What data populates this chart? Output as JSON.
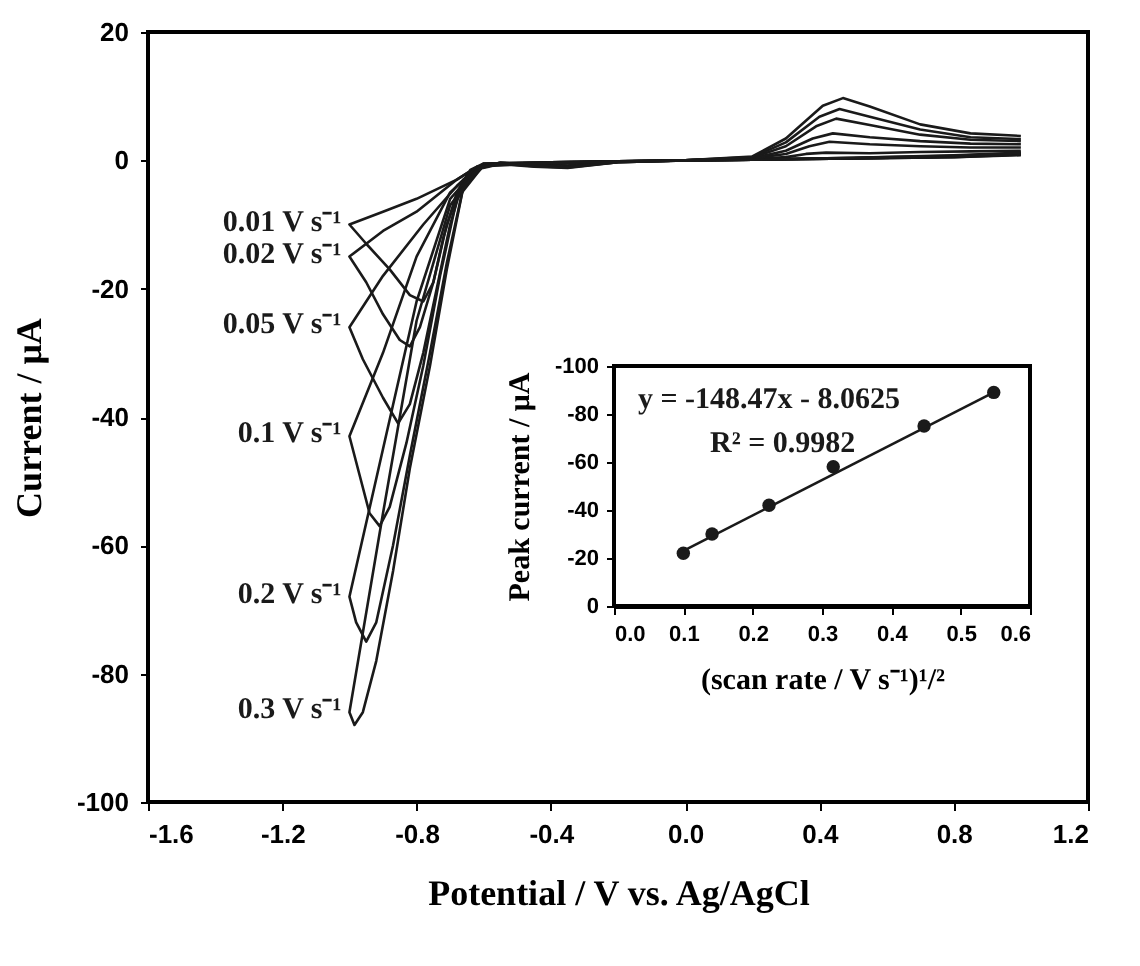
{
  "chart_data": [
    {
      "type": "line",
      "xlabel": "Potential / V vs. Ag/AgCl",
      "ylabel": "Current / μA",
      "xlim": [
        -1.6,
        1.2
      ],
      "xticks": [
        -1.6,
        -1.2,
        -0.8,
        -0.4,
        {
          "value": 0,
          "label": "0.0"
        },
        0.4,
        0.8,
        1.2
      ],
      "ylim": [
        -100,
        20
      ],
      "yticks": [
        -100,
        -80,
        -60,
        -40,
        -20,
        0,
        20
      ],
      "grid": false,
      "legend": false,
      "line_style": "solid",
      "series": [
        {
          "name": "0.01 V s⁻¹",
          "color": "#1a1a1a",
          "x": [
            1.0,
            0.8,
            0.5,
            0.2,
            0.0,
            -0.2,
            -0.35,
            -0.45,
            -0.55,
            -0.62,
            -0.68,
            -0.8,
            -0.9,
            -1.0,
            -0.95,
            -0.88,
            -0.82,
            -0.78,
            -0.75,
            -0.72,
            -0.68,
            -0.64,
            -0.6,
            -0.4,
            0.0,
            0.2,
            0.3,
            0.36,
            0.42,
            0.55,
            0.7,
            0.85,
            1.0
          ],
          "values": [
            0.8,
            0.5,
            0.3,
            0.1,
            0,
            -0.2,
            -0.8,
            -0.6,
            -0.4,
            -1,
            -3,
            -6,
            -8,
            -10,
            -13,
            -17,
            -21,
            -22,
            -19,
            -12,
            -5,
            -1.5,
            -0.5,
            -0.3,
            0,
            0.2,
            0.5,
            1.0,
            1.2,
            1.1,
            1.3,
            1.4,
            1.5
          ]
        },
        {
          "name": "0.02 V s⁻¹",
          "color": "#1a1a1a",
          "x": [
            1.0,
            0.8,
            0.5,
            0.2,
            0.0,
            -0.2,
            -0.35,
            -0.45,
            -0.55,
            -0.62,
            -0.68,
            -0.8,
            -0.9,
            -1.0,
            -0.95,
            -0.9,
            -0.85,
            -0.82,
            -0.79,
            -0.75,
            -0.71,
            -0.66,
            -0.6,
            -0.4,
            0.0,
            0.2,
            0.3,
            0.37,
            0.43,
            0.55,
            0.7,
            0.85,
            1.0
          ],
          "values": [
            0.9,
            0.5,
            0.3,
            0.1,
            0,
            -0.2,
            -0.8,
            -0.6,
            -0.4,
            -1,
            -3,
            -8,
            -11,
            -15,
            -19,
            -24,
            -28,
            -29,
            -26,
            -19,
            -10,
            -3,
            -0.5,
            -0.3,
            0,
            0.3,
            1.0,
            2.2,
            2.9,
            2.5,
            2.2,
            2.0,
            2.0
          ]
        },
        {
          "name": "0.05 V s⁻¹",
          "color": "#1a1a1a",
          "x": [
            1.0,
            0.8,
            0.5,
            0.2,
            0.0,
            -0.2,
            -0.35,
            -0.45,
            -0.55,
            -0.62,
            -0.68,
            -0.78,
            -0.9,
            -1.0,
            -0.96,
            -0.9,
            -0.855,
            -0.82,
            -0.78,
            -0.74,
            -0.7,
            -0.66,
            -0.6,
            -0.4,
            0.0,
            0.2,
            0.3,
            0.38,
            0.44,
            0.55,
            0.7,
            0.85,
            1.0
          ],
          "values": [
            1.0,
            0.6,
            0.3,
            0.1,
            0,
            -0.2,
            -0.9,
            -0.7,
            -0.4,
            -1,
            -4,
            -10,
            -18,
            -26,
            -31,
            -37,
            -41,
            -38,
            -30,
            -20,
            -10,
            -3,
            -0.6,
            -0.3,
            0,
            0.3,
            1.5,
            3.4,
            4.2,
            3.6,
            3.0,
            2.6,
            2.5
          ]
        },
        {
          "name": "0.1 V s⁻¹",
          "color": "#1a1a1a",
          "x": [
            1.0,
            0.8,
            0.5,
            0.2,
            0.0,
            -0.2,
            -0.35,
            -0.45,
            -0.55,
            -0.62,
            -0.7,
            -0.8,
            -0.9,
            -1.0,
            -0.97,
            -0.94,
            -0.91,
            -0.88,
            -0.83,
            -0.78,
            -0.73,
            -0.68,
            -0.6,
            -0.4,
            0.0,
            0.2,
            0.3,
            0.39,
            0.45,
            0.55,
            0.7,
            0.85,
            1.0
          ],
          "values": [
            1.0,
            0.6,
            0.3,
            0.1,
            0,
            -0.3,
            -1.0,
            -0.8,
            -0.5,
            -1.2,
            -5,
            -15,
            -30,
            -43,
            -49,
            -55,
            -57,
            -54,
            -44,
            -32,
            -18,
            -6,
            -0.7,
            -0.3,
            0,
            0.4,
            2.2,
            5.3,
            6.5,
            5.5,
            4.0,
            3.2,
            3.0
          ]
        },
        {
          "name": "0.2 V s⁻¹",
          "color": "#1a1a1a",
          "x": [
            1.0,
            0.8,
            0.5,
            0.2,
            0.0,
            -0.2,
            -0.35,
            -0.45,
            -0.55,
            -0.62,
            -0.7,
            -0.8,
            -0.9,
            -1.0,
            -0.98,
            -0.95,
            -0.92,
            -0.87,
            -0.82,
            -0.76,
            -0.71,
            -0.66,
            -0.6,
            -0.4,
            0.0,
            0.2,
            0.3,
            0.4,
            0.46,
            0.55,
            0.7,
            0.85,
            1.0
          ],
          "values": [
            1.1,
            0.7,
            0.4,
            0.1,
            0,
            -0.3,
            -1.1,
            -0.9,
            -0.5,
            -1.3,
            -6,
            -22,
            -45,
            -68,
            -72,
            -75,
            -72,
            -60,
            -46,
            -30,
            -16,
            -4,
            -0.8,
            -0.4,
            0,
            0.5,
            2.8,
            6.8,
            8.0,
            6.8,
            4.8,
            3.6,
            3.3
          ]
        },
        {
          "name": "0.3 V s⁻¹",
          "color": "#1a1a1a",
          "x": [
            1.0,
            0.8,
            0.5,
            0.2,
            0.0,
            -0.2,
            -0.35,
            -0.45,
            -0.55,
            -0.62,
            -0.7,
            -0.8,
            -0.9,
            -1.0,
            -0.985,
            -0.96,
            -0.92,
            -0.87,
            -0.82,
            -0.76,
            -0.71,
            -0.66,
            -0.6,
            -0.4,
            0.0,
            0.2,
            0.3,
            0.41,
            0.47,
            0.55,
            0.7,
            0.85,
            1.0
          ],
          "values": [
            1.2,
            0.8,
            0.4,
            0.1,
            0,
            -0.3,
            -1.2,
            -1.0,
            -0.6,
            -1.4,
            -7,
            -25,
            -55,
            -86,
            -88,
            -86,
            -78,
            -64,
            -48,
            -32,
            -17,
            -4,
            -0.9,
            -0.4,
            0,
            0.6,
            3.4,
            8.5,
            9.7,
            8.4,
            5.6,
            4.2,
            3.8
          ]
        }
      ]
    },
    {
      "type": "scatter",
      "xlabel": "(scan rate / V s⁻¹)¹/²",
      "ylabel": "Peak current / μA",
      "xlim": [
        0,
        0.6
      ],
      "xticks": [
        {
          "value": 0,
          "label": "0.0"
        },
        0.1,
        0.2,
        0.3,
        0.4,
        0.5,
        0.6
      ],
      "ylim": [
        0,
        -100
      ],
      "yticks": [
        0,
        -20,
        -40,
        -60,
        -80,
        -100
      ],
      "grid": false,
      "legend": false,
      "annotations": [
        "y = -148.47x - 8.0625",
        "R² = 0.9982"
      ],
      "series": [
        {
          "type": "scatter",
          "marker": "circle",
          "color": "#1a1a1a",
          "x": [
            0.1,
            0.1414,
            0.2236,
            0.3162,
            0.4472,
            0.5477
          ],
          "values": [
            -22,
            -30,
            -42,
            -58,
            -75,
            -89
          ]
        },
        {
          "type": "line",
          "color": "#1a1a1a",
          "x": [
            0.1,
            0.5477
          ],
          "values": [
            -23,
            -89
          ]
        }
      ]
    }
  ]
}
